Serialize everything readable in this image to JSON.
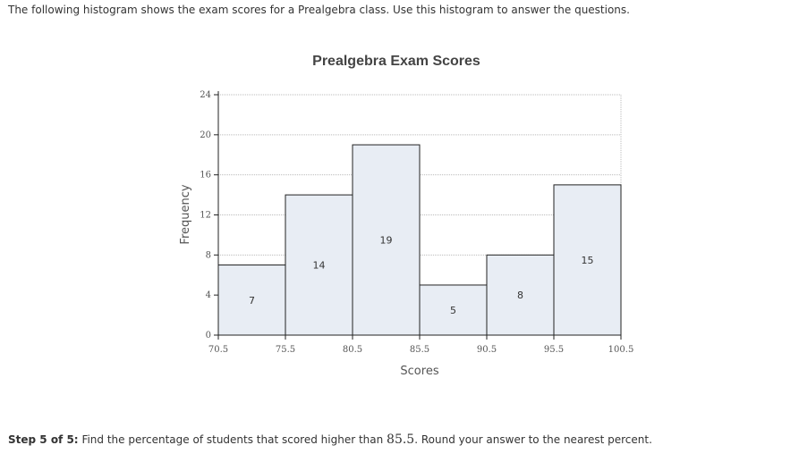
{
  "intro_text": "The following histogram shows the exam scores for a Prealgebra class. Use this histogram to answer the questions.",
  "step": {
    "label": "Step 5 of 5:",
    "text_before": "Find the percentage of students that scored higher than",
    "value": "85.5",
    "text_after": ". Round your answer to the nearest percent."
  },
  "colors": {
    "bar_fill": "#e8edf4",
    "bar_stroke": "#222222",
    "grid": "#bbbbbb",
    "text": "#333333"
  },
  "chart_data": {
    "type": "bar",
    "title": "Prealgebra Exam Scores",
    "xlabel": "Scores",
    "ylabel": "Frequency",
    "bin_edges": [
      70.5,
      75.5,
      80.5,
      85.5,
      90.5,
      95.5,
      100.5
    ],
    "x_tick_labels": [
      "70.5",
      "75.5",
      "80.5",
      "85.5",
      "90.5",
      "95.5",
      "100.5"
    ],
    "values": [
      7,
      14,
      19,
      5,
      8,
      15
    ],
    "ylim": [
      0,
      24
    ],
    "y_ticks": [
      0,
      4,
      8,
      12,
      16,
      20,
      24
    ],
    "grid": true
  }
}
